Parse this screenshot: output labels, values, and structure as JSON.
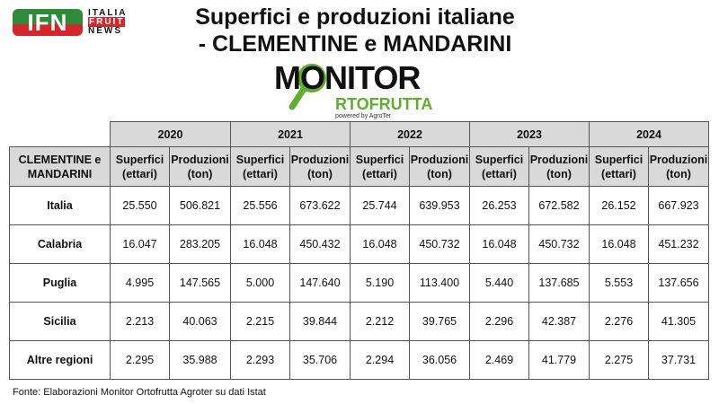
{
  "brand": {
    "ifn": "IFN",
    "line1": "ITALIA",
    "line2": "FRUIT",
    "line3": "NEWS"
  },
  "title": {
    "line1": "Superfici e produzioni italiane",
    "line2": "- CLEMENTINE e MANDARINI"
  },
  "logo": {
    "monitor": "MONITOR",
    "ortofrutta": "RTOFRUTTA",
    "powered": "powered by AgroTer",
    "accent": "#5fae2e"
  },
  "table": {
    "corner": "CLEMENTINE e MANDARINI",
    "years": [
      "2020",
      "2021",
      "2022",
      "2023",
      "2024"
    ],
    "sub_headers": [
      "Superfici (ettari)",
      "Produzioni (ton)"
    ],
    "rows": [
      {
        "name": "Italia",
        "values": [
          "25.550",
          "506.821",
          "25.556",
          "673.622",
          "25.744",
          "639.953",
          "26.253",
          "672.582",
          "26.152",
          "667.923"
        ]
      },
      {
        "name": "Calabria",
        "values": [
          "16.047",
          "283.205",
          "16.048",
          "450.432",
          "16.048",
          "450.732",
          "16.048",
          "450.732",
          "16.048",
          "451.232"
        ]
      },
      {
        "name": "Puglia",
        "values": [
          "4.995",
          "147.565",
          "5.000",
          "147.640",
          "5.190",
          "113.400",
          "5.440",
          "137.685",
          "5.553",
          "137.656"
        ]
      },
      {
        "name": "Sicilia",
        "values": [
          "2.213",
          "40.063",
          "2.215",
          "39.844",
          "2.212",
          "39.765",
          "2.296",
          "42.387",
          "2.276",
          "41.305"
        ]
      },
      {
        "name": "Altre regioni",
        "values": [
          "2.295",
          "35.988",
          "2.293",
          "35.706",
          "2.294",
          "36.056",
          "2.469",
          "41.779",
          "2.275",
          "37.731"
        ]
      }
    ]
  },
  "footer": "Fonte: Elaborazioni Monitor Ortofrutta Agroter su dati Istat"
}
